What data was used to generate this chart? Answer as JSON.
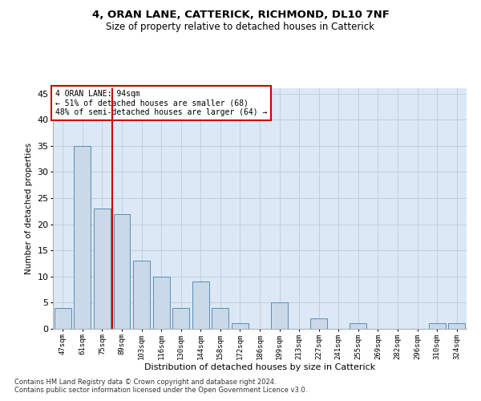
{
  "title1": "4, ORAN LANE, CATTERICK, RICHMOND, DL10 7NF",
  "title2": "Size of property relative to detached houses in Catterick",
  "xlabel": "Distribution of detached houses by size in Catterick",
  "ylabel": "Number of detached properties",
  "categories": [
    "47sqm",
    "61sqm",
    "75sqm",
    "89sqm",
    "103sqm",
    "116sqm",
    "130sqm",
    "144sqm",
    "158sqm",
    "172sqm",
    "186sqm",
    "199sqm",
    "213sqm",
    "227sqm",
    "241sqm",
    "255sqm",
    "269sqm",
    "282sqm",
    "296sqm",
    "310sqm",
    "324sqm"
  ],
  "values": [
    4,
    35,
    23,
    22,
    13,
    10,
    4,
    9,
    4,
    1,
    0,
    5,
    0,
    2,
    0,
    1,
    0,
    0,
    0,
    1,
    1
  ],
  "bar_color": "#c9d9e8",
  "bar_edge_color": "#5a8db5",
  "vline_color": "#cc0000",
  "annotation_text": "4 ORAN LANE: 94sqm\n← 51% of detached houses are smaller (68)\n48% of semi-detached houses are larger (64) →",
  "annotation_box_color": "#cc0000",
  "ylim": [
    0,
    46
  ],
  "yticks": [
    0,
    5,
    10,
    15,
    20,
    25,
    30,
    35,
    40,
    45
  ],
  "grid_color": "#c0cfe0",
  "bg_color": "#dce8f5",
  "footer1": "Contains HM Land Registry data © Crown copyright and database right 2024.",
  "footer2": "Contains public sector information licensed under the Open Government Licence v3.0."
}
